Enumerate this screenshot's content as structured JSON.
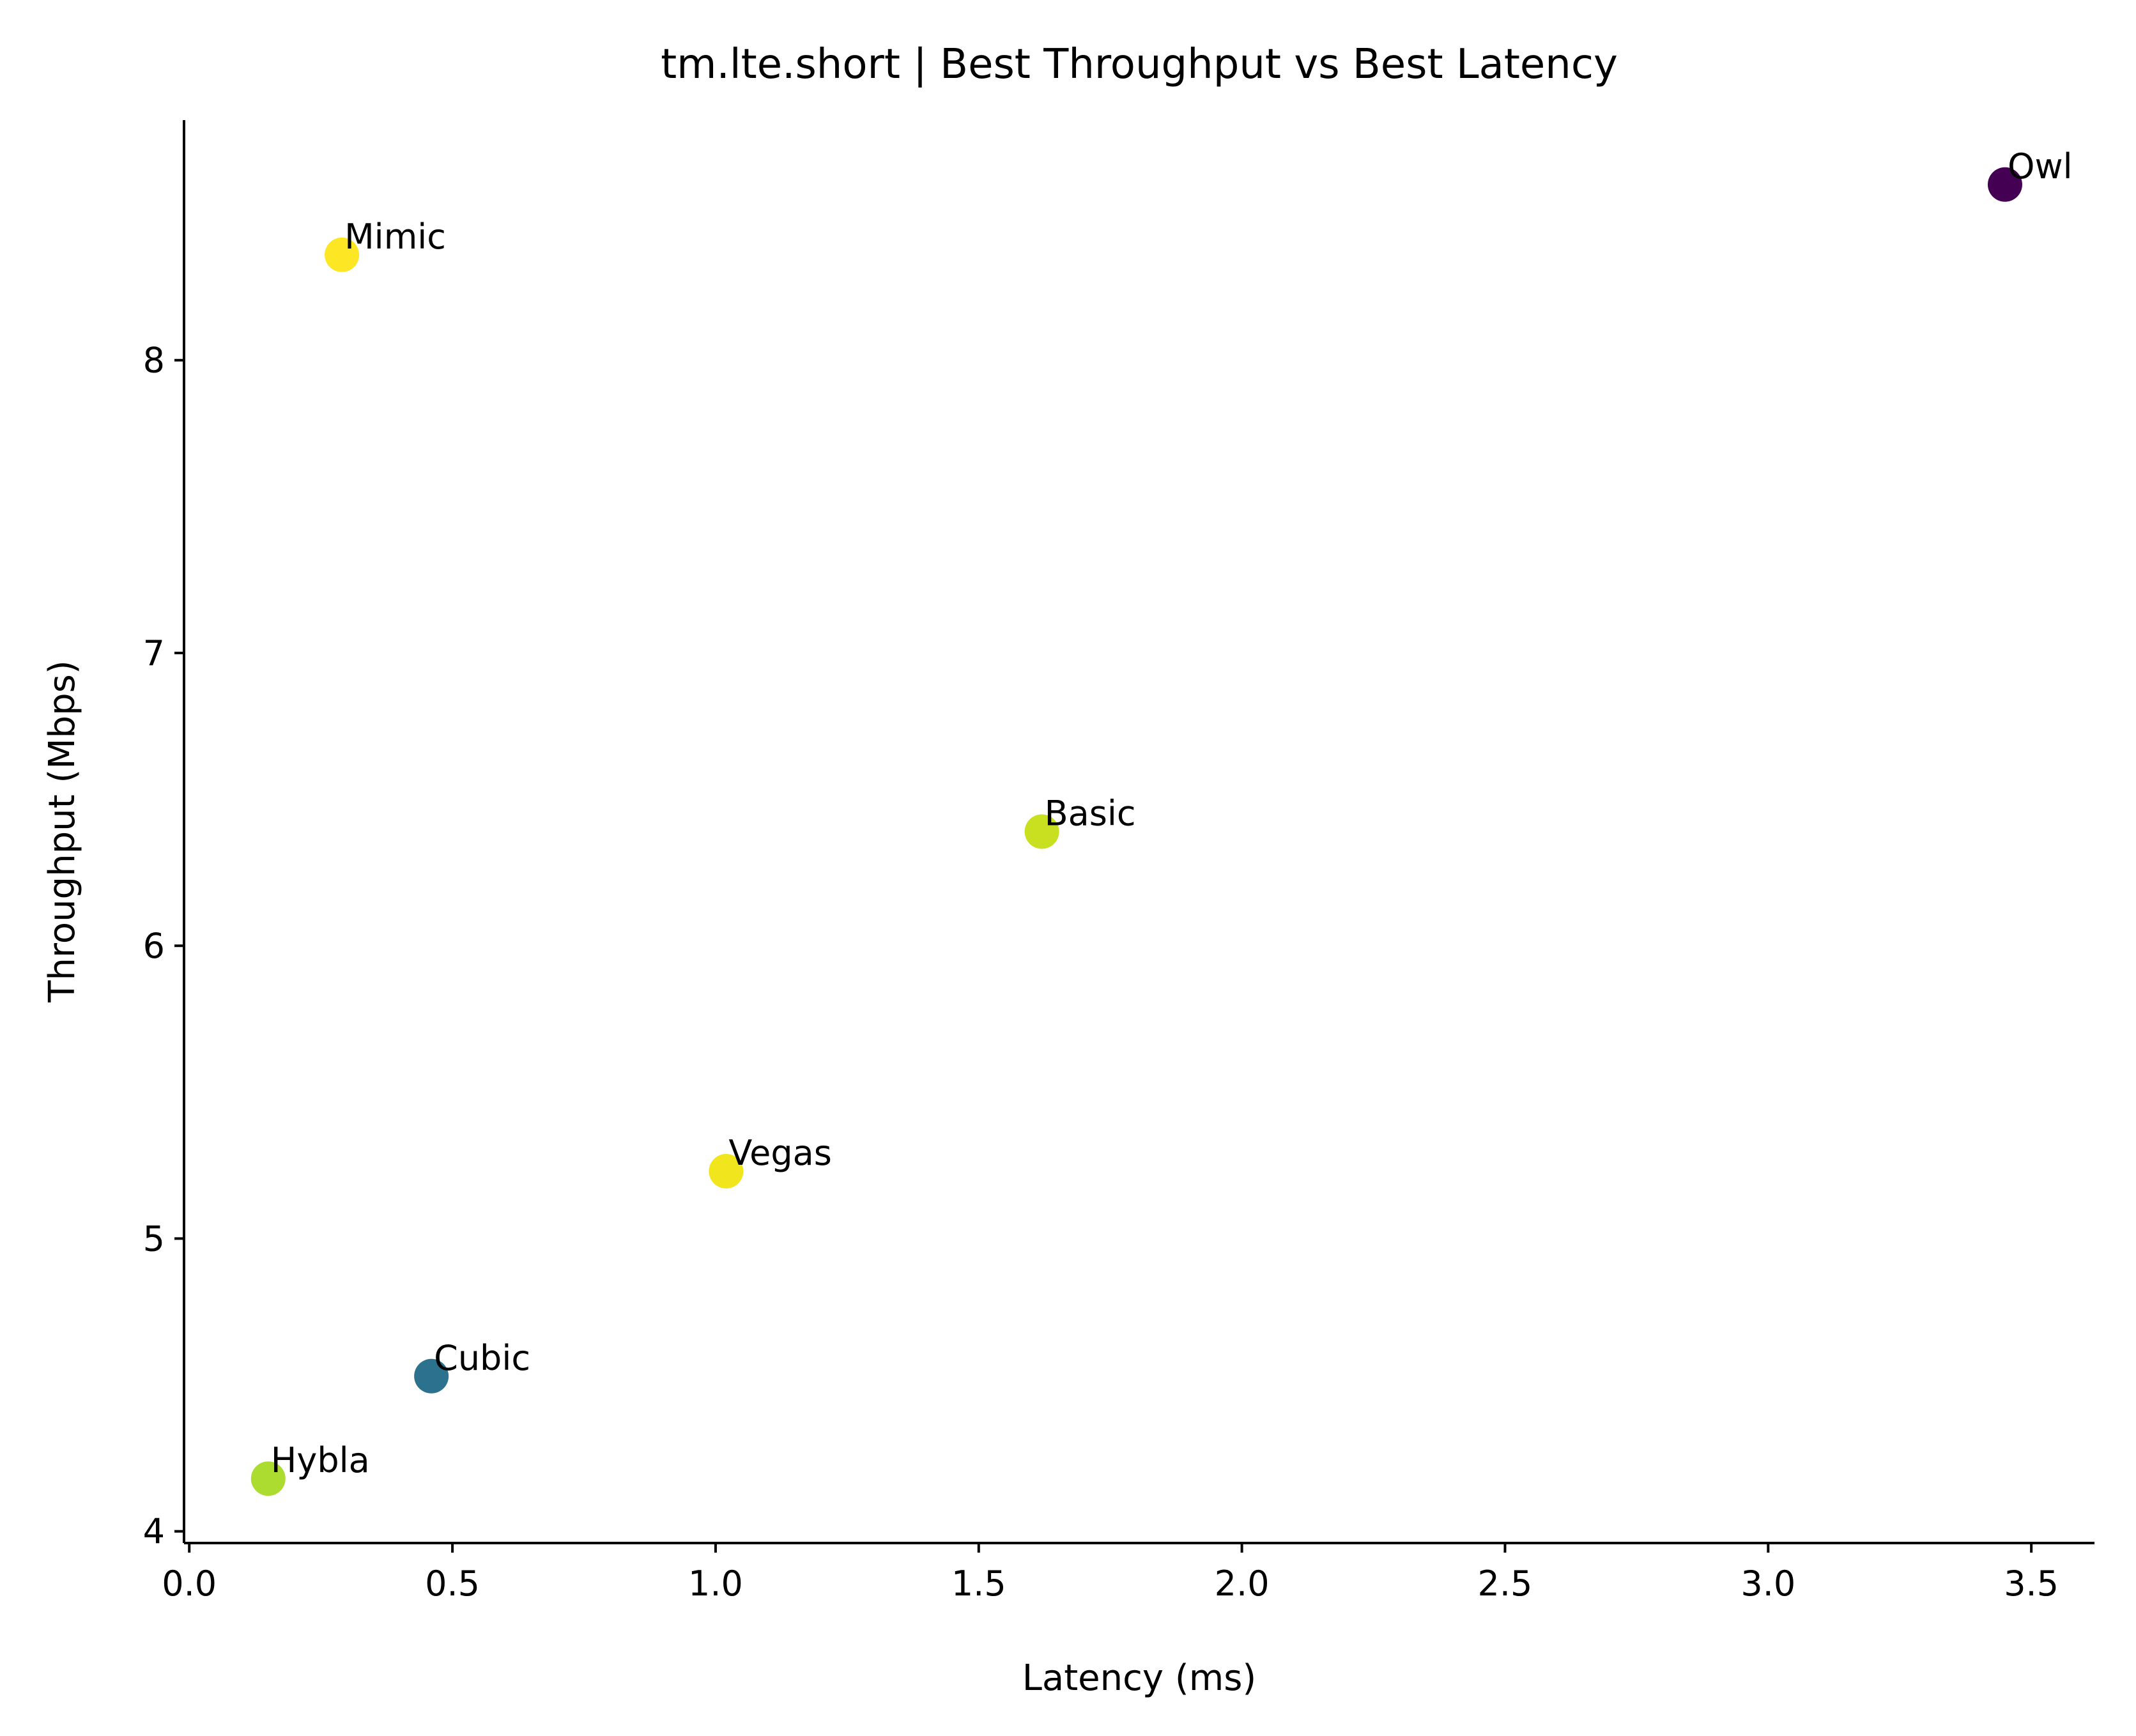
{
  "chart_data": {
    "type": "scatter",
    "title": "tm.lte.short | Best Throughput vs Best Latency",
    "xlabel": "Latency (ms)",
    "ylabel": "Throughput (Mbps)",
    "xlim": [
      -0.01,
      3.62
    ],
    "ylim": [
      3.96,
      8.82
    ],
    "xticks": [
      0.0,
      0.5,
      1.0,
      1.5,
      2.0,
      2.5,
      3.0,
      3.5
    ],
    "xtick_labels": [
      "0.0",
      "0.5",
      "1.0",
      "1.5",
      "2.0",
      "2.5",
      "3.0",
      "3.5"
    ],
    "yticks": [
      4,
      5,
      6,
      7,
      8
    ],
    "ytick_labels": [
      "4",
      "5",
      "6",
      "7",
      "8"
    ],
    "grid": false,
    "colormap": "viridis",
    "points": [
      {
        "label": "Owl",
        "x": 3.45,
        "y": 8.6,
        "color": "#440154"
      },
      {
        "label": "Mimic",
        "x": 0.29,
        "y": 8.36,
        "color": "#fde725"
      },
      {
        "label": "Basic",
        "x": 1.62,
        "y": 6.39,
        "color": "#c8e020"
      },
      {
        "label": "Vegas",
        "x": 1.02,
        "y": 5.23,
        "color": "#f1e51d"
      },
      {
        "label": "Cubic",
        "x": 0.46,
        "y": 4.53,
        "color": "#2c728e"
      },
      {
        "label": "Hybla",
        "x": 0.15,
        "y": 4.18,
        "color": "#addc30"
      }
    ]
  }
}
